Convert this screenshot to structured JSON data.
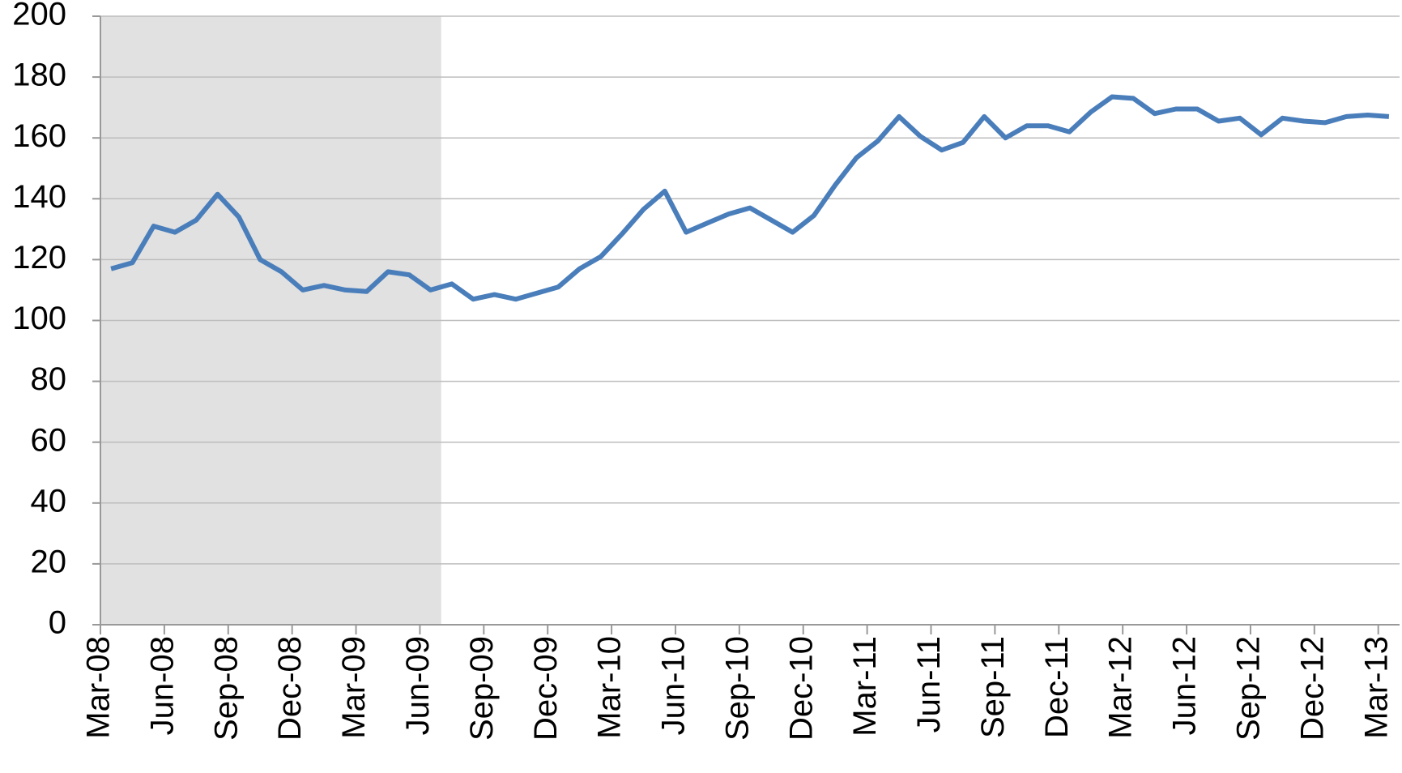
{
  "chart_data": {
    "type": "line",
    "categories": [
      "Mar-08",
      null,
      null,
      "Jun-08",
      null,
      null,
      "Sep-08",
      null,
      null,
      "Dec-08",
      null,
      null,
      "Mar-09",
      null,
      null,
      "Jun-09",
      null,
      null,
      "Sep-09",
      null,
      null,
      "Dec-09",
      null,
      null,
      "Mar-10",
      null,
      null,
      "Jun-10",
      null,
      null,
      "Sep-10",
      null,
      null,
      "Dec-10",
      null,
      null,
      "Mar-11",
      null,
      null,
      "Jun-11",
      null,
      null,
      "Sep-11",
      null,
      null,
      "Dec-11",
      null,
      null,
      "Mar-12",
      null,
      null,
      "Jun-12",
      null,
      null,
      "Sep-12",
      null,
      null,
      "Dec-12",
      null,
      null,
      "Mar-13"
    ],
    "values": [
      117,
      119,
      131,
      129,
      133,
      141.5,
      134,
      120,
      116,
      110,
      111.5,
      110,
      109.5,
      116,
      115,
      110,
      112,
      107,
      108.5,
      107,
      109,
      111,
      117,
      121,
      128.5,
      136.5,
      142.5,
      129,
      132,
      135,
      137,
      133,
      129,
      134.5,
      144.5,
      153.5,
      159,
      167,
      160.5,
      156,
      158.5,
      167,
      160,
      164,
      164,
      162,
      168.5,
      173.5,
      173,
      168,
      169.5,
      169.5,
      165.5,
      166.5,
      161,
      166.5,
      165.5,
      165,
      167,
      167.5,
      167
    ],
    "color": "#4a7ebb",
    "ylim": [
      0,
      200
    ],
    "yticks": [
      0,
      20,
      40,
      60,
      80,
      100,
      120,
      140,
      160,
      180,
      200
    ],
    "grid": true,
    "shaded_range": [
      0,
      16
    ],
    "shade_color": "#e1e1e1"
  }
}
